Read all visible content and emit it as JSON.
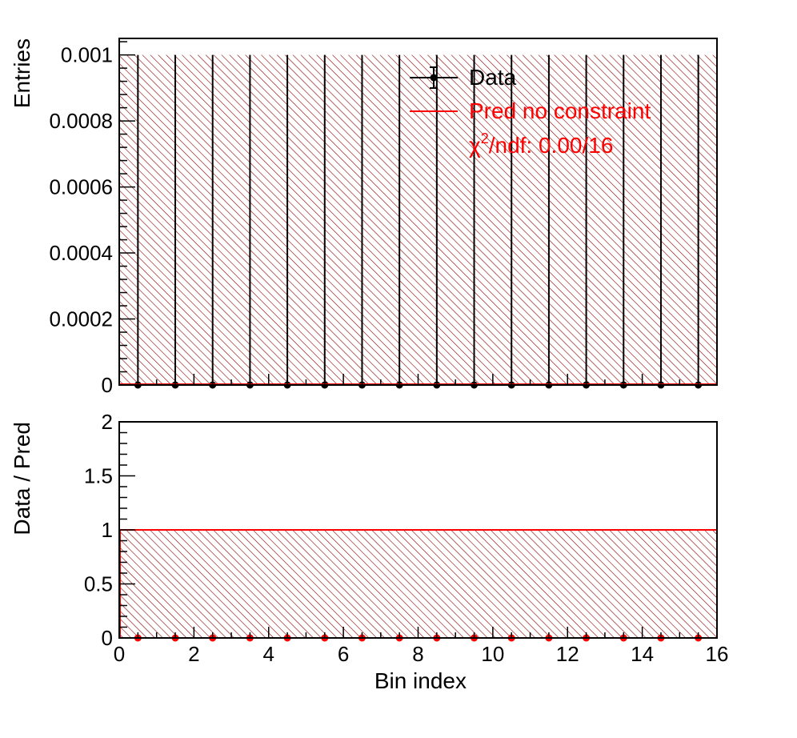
{
  "chart_data": [
    {
      "type": "bar",
      "name": "top",
      "xlim": [
        0,
        16
      ],
      "ylim": [
        0,
        0.00105
      ],
      "ylabel": "Entries",
      "yticks": [
        0,
        0.0002,
        0.0004,
        0.0006,
        0.0008,
        0.001
      ],
      "ytick_labels": [
        "0",
        "0.0002",
        "0.0004",
        "0.0006",
        "0.0008",
        "0.001"
      ],
      "pred_band": {
        "lo": 0,
        "hi": 0.001
      },
      "bin_edges": [
        0,
        1,
        2,
        3,
        4,
        5,
        6,
        7,
        8,
        9,
        10,
        11,
        12,
        13,
        14,
        15,
        16
      ],
      "pred_values": [
        0,
        0,
        0,
        0,
        0,
        0,
        0,
        0,
        0,
        0,
        0,
        0,
        0,
        0,
        0,
        0
      ],
      "data_x": [
        0.5,
        1.5,
        2.5,
        3.5,
        4.5,
        5.5,
        6.5,
        7.5,
        8.5,
        9.5,
        10.5,
        11.5,
        12.5,
        13.5,
        14.5,
        15.5
      ],
      "data_y": [
        0,
        0,
        0,
        0,
        0,
        0,
        0,
        0,
        0,
        0,
        0,
        0,
        0,
        0,
        0,
        0
      ],
      "data_err": [
        0.001,
        0.001,
        0.001,
        0.001,
        0.001,
        0.001,
        0.001,
        0.001,
        0.001,
        0.001,
        0.001,
        0.001,
        0.001,
        0.001,
        0.001,
        0.001
      ],
      "legend": {
        "data_label": "Data",
        "pred_label": "Pred no constraint",
        "chi2_prefix": "χ",
        "chi2_sup": "2",
        "chi2_rest": "/ndf: 0.00/16"
      }
    },
    {
      "type": "scatter",
      "name": "ratio",
      "xlim": [
        0,
        16
      ],
      "ylim": [
        0,
        2
      ],
      "xlabel": "Bin index",
      "ylabel": "Data / Pred",
      "xticks": [
        0,
        2,
        4,
        6,
        8,
        10,
        12,
        14,
        16
      ],
      "xtick_labels": [
        "0",
        "2",
        "4",
        "6",
        "8",
        "10",
        "12",
        "14",
        "16"
      ],
      "yticks": [
        0,
        0.5,
        1,
        1.5,
        2
      ],
      "ytick_labels": [
        "0",
        "0.5",
        "1",
        "1.5",
        "2"
      ],
      "band": {
        "lo": 0,
        "hi": 1
      },
      "ref_line": 1,
      "ratio_x": [
        0.5,
        1.5,
        2.5,
        3.5,
        4.5,
        5.5,
        6.5,
        7.5,
        8.5,
        9.5,
        10.5,
        11.5,
        12.5,
        13.5,
        14.5,
        15.5
      ],
      "ratio_y": [
        0,
        0,
        0,
        0,
        0,
        0,
        0,
        0,
        0,
        0,
        0,
        0,
        0,
        0,
        0,
        0
      ]
    }
  ],
  "colors": {
    "pred": "#ff0000",
    "hatch": "#8b0000",
    "data": "#000000",
    "ratio_points": "#ff0000"
  }
}
